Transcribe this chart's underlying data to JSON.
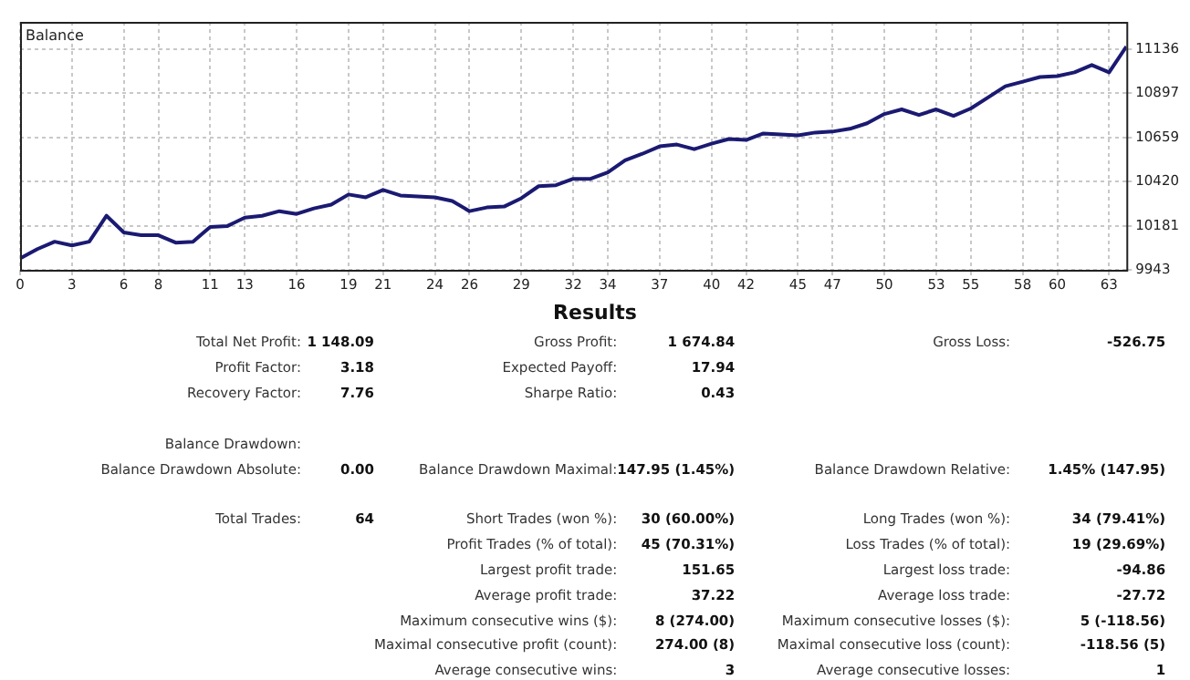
{
  "chart_data": {
    "type": "line",
    "title": "Balance",
    "color": "#1b1a72",
    "marker": "none",
    "line_style": "solid",
    "grid": true,
    "legend": false,
    "x": [
      0,
      1,
      2,
      3,
      4,
      5,
      6,
      7,
      8,
      9,
      10,
      11,
      12,
      13,
      14,
      15,
      16,
      17,
      18,
      19,
      20,
      21,
      22,
      23,
      24,
      25,
      26,
      27,
      28,
      29,
      30,
      31,
      32,
      33,
      34,
      35,
      36,
      37,
      38,
      39,
      40,
      41,
      42,
      43,
      44,
      45,
      46,
      47,
      48,
      49,
      50,
      51,
      52,
      53,
      54,
      55,
      56,
      57,
      58,
      59,
      60,
      61,
      62,
      63,
      64
    ],
    "values": [
      10005,
      10055,
      10095,
      10075,
      10095,
      10235,
      10145,
      10130,
      10130,
      10090,
      10095,
      10175,
      10180,
      10225,
      10235,
      10260,
      10245,
      10275,
      10295,
      10350,
      10335,
      10375,
      10345,
      10340,
      10335,
      10315,
      10260,
      10280,
      10285,
      10330,
      10395,
      10400,
      10435,
      10435,
      10470,
      10535,
      10570,
      10610,
      10620,
      10595,
      10625,
      10650,
      10645,
      10680,
      10675,
      10670,
      10685,
      10690,
      10705,
      10735,
      10785,
      10810,
      10780,
      10810,
      10775,
      10815,
      10875,
      10935,
      10960,
      10985,
      10990,
      11010,
      11050,
      11010,
      11150
    ],
    "xlim": [
      0,
      64
    ],
    "xticks": [
      0,
      3,
      6,
      8,
      11,
      13,
      16,
      19,
      21,
      24,
      26,
      29,
      32,
      34,
      37,
      40,
      42,
      45,
      47,
      50,
      53,
      55,
      58,
      60,
      63
    ],
    "ylim": [
      9943,
      11283
    ],
    "yticks": [
      9943,
      10181,
      10420,
      10659,
      10897,
      11136
    ],
    "annotations": [
      "Results",
      "Total Net Profit:",
      "1 148.09",
      "Gross Profit:",
      "1 674.84",
      "Gross Loss:",
      "-526.75",
      "Profit Factor:",
      "3.18",
      "Expected Payoff:",
      "17.94",
      "Recovery Factor:",
      "7.76",
      "Sharpe Ratio:",
      "0.43",
      "Balance Drawdown:",
      "Balance Drawdown Absolute:",
      "0.00",
      "Balance Drawdown Maximal:",
      "147.95 (1.45%)",
      "Balance Drawdown Relative:",
      "1.45% (147.95)",
      "Total Trades:",
      "64",
      "Short Trades (won %):",
      "30 (60.00%)",
      "Long Trades (won %):",
      "34 (79.41%)",
      "Profit Trades (% of total):",
      "45 (70.31%)",
      "Loss Trades (% of total):",
      "19 (29.69%)",
      "Largest profit trade:",
      "151.65",
      "Largest loss trade:",
      "-94.86",
      "Average profit trade:",
      "37.22",
      "Average loss trade:",
      "-27.72",
      "Maximum consecutive wins ($):",
      "8 (274.00)",
      "Maximum consecutive losses ($):",
      "5 (-118.56)",
      "Maximal consecutive profit (count):",
      "274.00 (8)",
      "Maximal consecutive loss (count):",
      "-118.56 (5)",
      "Average consecutive wins:",
      "3",
      "Average consecutive losses:",
      "1"
    ]
  }
}
